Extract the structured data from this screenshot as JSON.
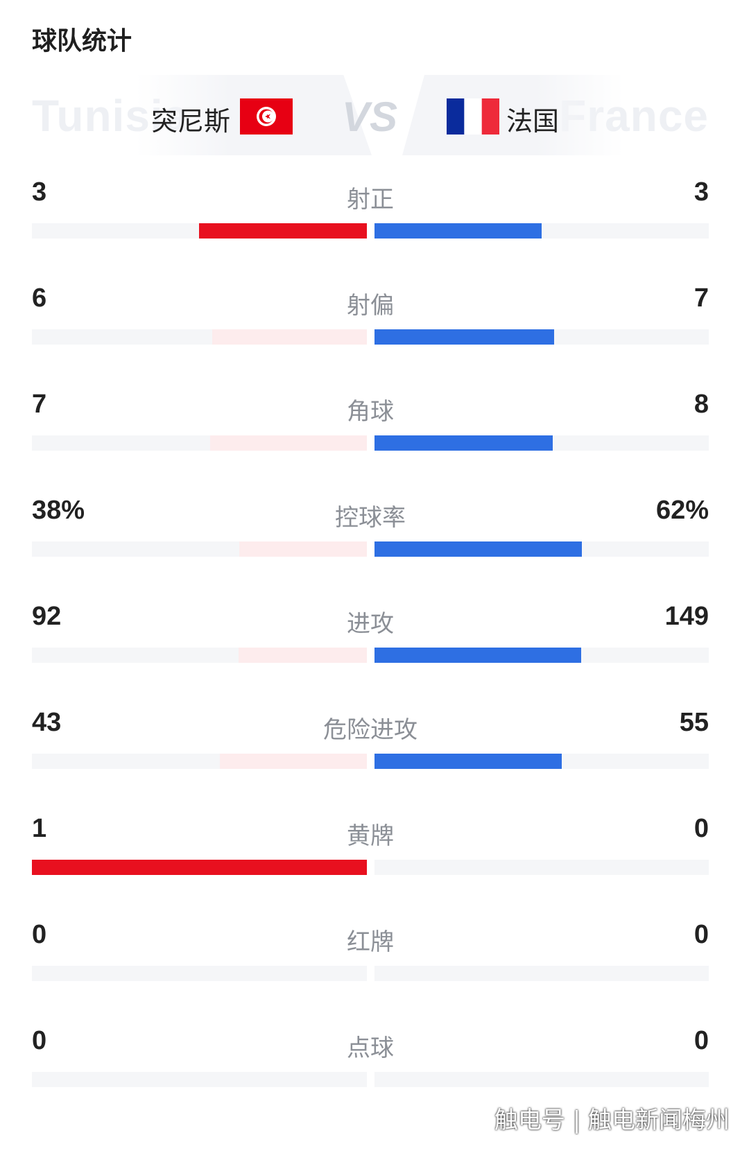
{
  "title": "球队统计",
  "home": {
    "name": "突尼斯",
    "ghost": "Tunisia"
  },
  "away": {
    "name": "法国",
    "ghost": "France"
  },
  "vs": "VS",
  "colors": {
    "home_strong": "#e8101f",
    "home_weak": "#fdeced",
    "away": "#2e6fe3",
    "track": "#f5f6f8"
  },
  "stats": [
    {
      "label": "射正",
      "home": "3",
      "away": "3",
      "home_fill": 0.5,
      "away_fill": 0.5,
      "home_strong": true
    },
    {
      "label": "射偏",
      "home": "6",
      "away": "7",
      "home_fill": 0.462,
      "away_fill": 0.538,
      "home_strong": false
    },
    {
      "label": "角球",
      "home": "7",
      "away": "8",
      "home_fill": 0.467,
      "away_fill": 0.533,
      "home_strong": false
    },
    {
      "label": "控球率",
      "home": "38%",
      "away": "62%",
      "home_fill": 0.38,
      "away_fill": 0.62,
      "home_strong": false
    },
    {
      "label": "进攻",
      "home": "92",
      "away": "149",
      "home_fill": 0.382,
      "away_fill": 0.618,
      "home_strong": false
    },
    {
      "label": "危险进攻",
      "home": "43",
      "away": "55",
      "home_fill": 0.439,
      "away_fill": 0.561,
      "home_strong": false
    },
    {
      "label": "黄牌",
      "home": "1",
      "away": "0",
      "home_fill": 1.0,
      "away_fill": 0.0,
      "home_strong": true
    },
    {
      "label": "红牌",
      "home": "0",
      "away": "0",
      "home_fill": 0.0,
      "away_fill": 0.0,
      "home_strong": false
    },
    {
      "label": "点球",
      "home": "0",
      "away": "0",
      "home_fill": 0.0,
      "away_fill": 0.0,
      "home_strong": false
    }
  ],
  "watermark": "触电号 | 触电新闻梅州"
}
